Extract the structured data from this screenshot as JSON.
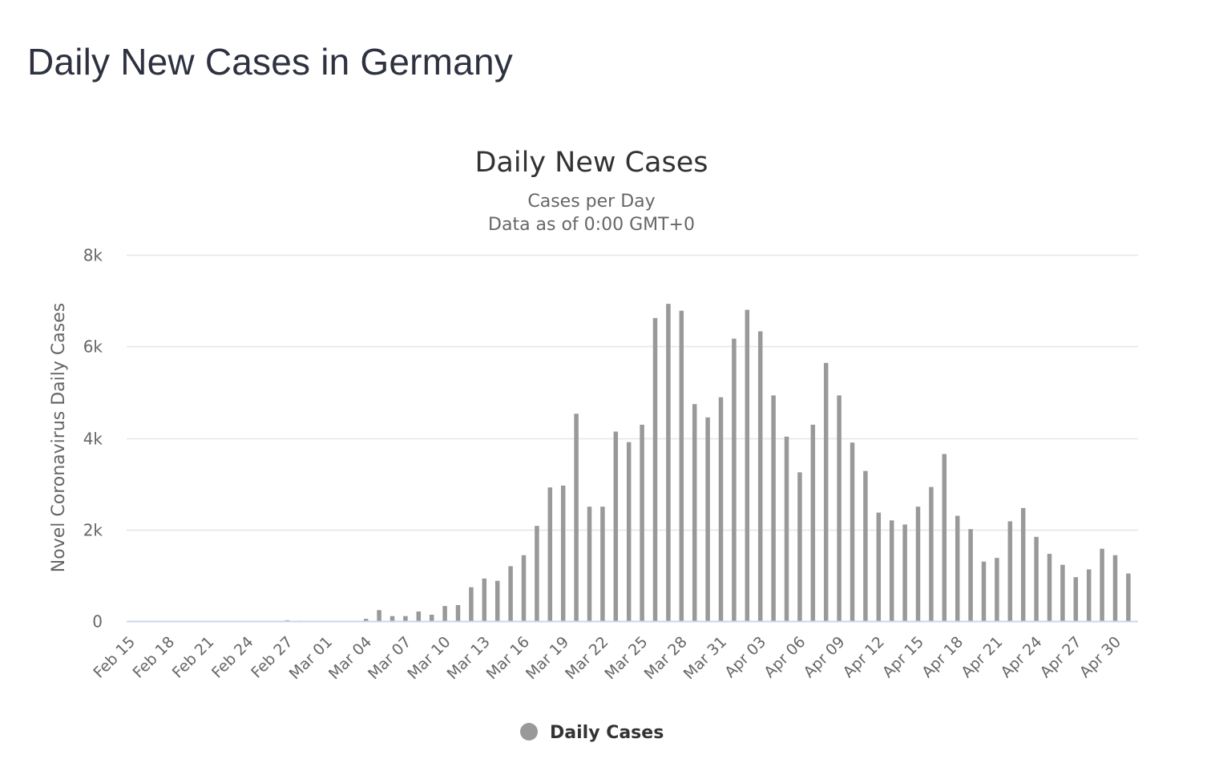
{
  "page": {
    "heading": "Daily New Cases in Germany"
  },
  "colors": {
    "bar": "#999999",
    "gridline": "#e6e6e6",
    "axis_line": "#ccd6eb",
    "heading": "#2e3240"
  },
  "chart_data": {
    "type": "bar",
    "title": "Daily New Cases",
    "subtitle_lines": [
      "Cases per Day",
      "Data as of 0:00 GMT+0"
    ],
    "ylabel": "Novel Coronavirus Daily Cases",
    "xlabel": "",
    "ylim": [
      0,
      8000
    ],
    "y_ticks": [
      0,
      2000,
      4000,
      6000,
      8000
    ],
    "y_tick_labels": [
      "0",
      "2k",
      "4k",
      "6k",
      "8k"
    ],
    "grid": true,
    "legend": {
      "position": "bottom-center",
      "entries": [
        "Daily Cases"
      ]
    },
    "x_tick_labels": [
      "Feb 15",
      "Feb 18",
      "Feb 21",
      "Feb 24",
      "Feb 27",
      "Mar 01",
      "Mar 04",
      "Mar 07",
      "Mar 10",
      "Mar 13",
      "Mar 16",
      "Mar 19",
      "Mar 22",
      "Mar 25",
      "Mar 28",
      "Mar 31",
      "Apr 03",
      "Apr 06",
      "Apr 09",
      "Apr 12",
      "Apr 15",
      "Apr 18",
      "Apr 21",
      "Apr 24",
      "Apr 27",
      "Apr 30"
    ],
    "categories": [
      "Feb 15",
      "Feb 16",
      "Feb 17",
      "Feb 18",
      "Feb 19",
      "Feb 20",
      "Feb 21",
      "Feb 22",
      "Feb 23",
      "Feb 24",
      "Feb 25",
      "Feb 26",
      "Feb 27",
      "Feb 28",
      "Feb 29",
      "Mar 01",
      "Mar 02",
      "Mar 03",
      "Mar 04",
      "Mar 05",
      "Mar 06",
      "Mar 07",
      "Mar 08",
      "Mar 09",
      "Mar 10",
      "Mar 11",
      "Mar 12",
      "Mar 13",
      "Mar 14",
      "Mar 15",
      "Mar 16",
      "Mar 17",
      "Mar 18",
      "Mar 19",
      "Mar 20",
      "Mar 21",
      "Mar 22",
      "Mar 23",
      "Mar 24",
      "Mar 25",
      "Mar 26",
      "Mar 27",
      "Mar 28",
      "Mar 29",
      "Mar 30",
      "Mar 31",
      "Apr 01",
      "Apr 02",
      "Apr 03",
      "Apr 04",
      "Apr 05",
      "Apr 06",
      "Apr 07",
      "Apr 08",
      "Apr 09",
      "Apr 10",
      "Apr 11",
      "Apr 12",
      "Apr 13",
      "Apr 14",
      "Apr 15",
      "Apr 16",
      "Apr 17",
      "Apr 18",
      "Apr 19",
      "Apr 20",
      "Apr 21",
      "Apr 22",
      "Apr 23",
      "Apr 24",
      "Apr 25",
      "Apr 26",
      "Apr 27",
      "Apr 28",
      "Apr 29",
      "Apr 30",
      "May 01"
    ],
    "series": [
      {
        "name": "Daily Cases",
        "values": [
          0,
          0,
          0,
          0,
          0,
          0,
          0,
          0,
          0,
          0,
          2,
          0,
          20,
          10,
          0,
          0,
          0,
          0,
          50,
          240,
          110,
          110,
          210,
          140,
          330,
          350,
          740,
          930,
          880,
          1200,
          1440,
          2080,
          2920,
          2960,
          4530,
          2500,
          2500,
          4140,
          3910,
          4290,
          6620,
          6930,
          6780,
          4740,
          4450,
          4890,
          6170,
          6800,
          6330,
          4930,
          4030,
          3250,
          4290,
          5640,
          4930,
          3900,
          3280,
          2370,
          2200,
          2110,
          2500,
          2930,
          3650,
          2300,
          2010,
          1300,
          1380,
          2180,
          2470,
          1840,
          1470,
          1230,
          960,
          1130,
          1580,
          1440,
          1040
        ]
      }
    ]
  }
}
